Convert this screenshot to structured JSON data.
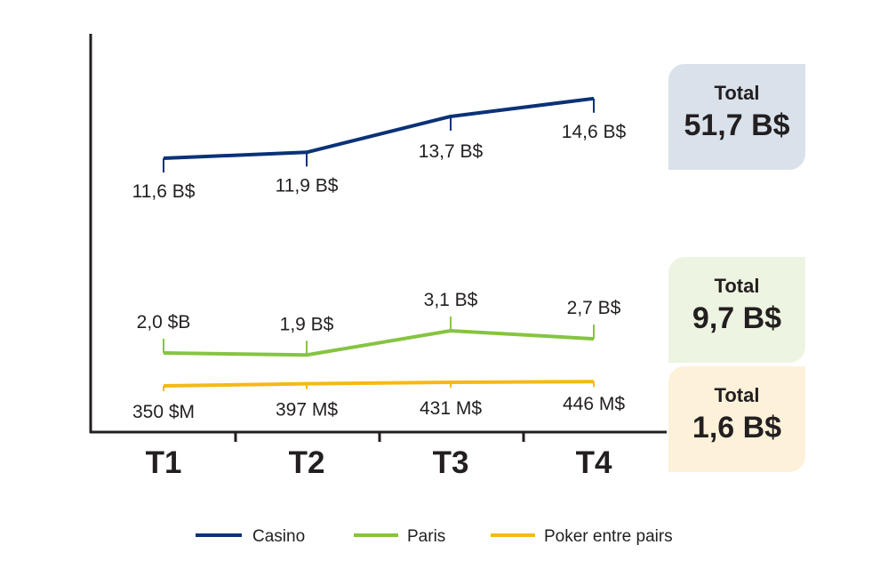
{
  "chart_data": {
    "type": "line",
    "categories": [
      "T1",
      "T2",
      "T3",
      "T4"
    ],
    "series": [
      {
        "name": "Casino",
        "color": "#0a3278",
        "values": [
          11.6,
          11.9,
          13.7,
          14.6
        ],
        "unit": "B$",
        "labels": [
          "11,6 B$",
          "11,9 B$",
          "13,7 B$",
          "14,6 B$"
        ],
        "total_label": "Total",
        "total": "51,7 B$",
        "total_bg": "#d9e1ea"
      },
      {
        "name": "Paris",
        "color": "#86c440",
        "values": [
          2.0,
          1.9,
          3.1,
          2.7
        ],
        "unit": "B$",
        "labels": [
          "2,0 $B",
          "1,9 B$",
          "3,1 B$",
          "2,7 B$"
        ],
        "total_label": "Total",
        "total": "9,7 B$",
        "total_bg": "#edf4e1"
      },
      {
        "name": "Poker entre pairs",
        "color": "#f5b914",
        "values": [
          350,
          397,
          431,
          446
        ],
        "unit": "M$",
        "labels": [
          "350 $M",
          "397 M$",
          "431 M$",
          "446 M$"
        ],
        "total_label": "Total",
        "total": "1,6 B$",
        "total_bg": "#fdf1da"
      }
    ],
    "axis_color": "#231f20",
    "grid": false,
    "legend_position": "bottom"
  }
}
